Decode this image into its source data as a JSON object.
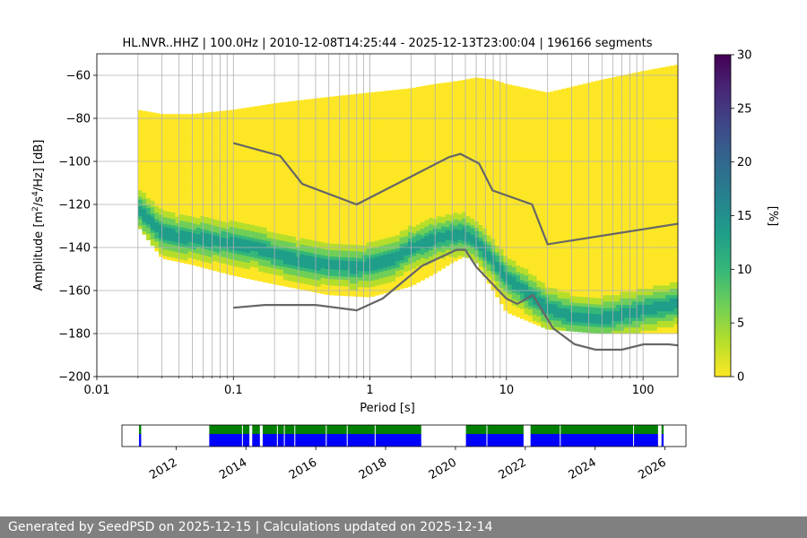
{
  "footer": {
    "text": "Generated by SeedPSD on 2025-12-15 | Calculations updated on 2025-12-14"
  },
  "colors": {
    "ppsd_yellow": "#fde725",
    "noise_model_line": "#666666",
    "grid": "#b0b0b0",
    "availability_data": "#0000ff",
    "availability_gaps_top": "#008000",
    "colormap": [
      "#fde725",
      "#b5de2b",
      "#6ece58",
      "#35b779",
      "#1f9e89",
      "#26828e",
      "#31688e",
      "#3e4989",
      "#482878",
      "#440154"
    ]
  },
  "chart_data": [
    {
      "type": "heatmap",
      "title": "HL.NVR..HHZ | 100.0Hz | 2010-12-08T14:25:44 - 2025-12-13T23:00:04 | 196166 segments",
      "xlabel": "Period [s]",
      "ylabel_parts": {
        "pre": "Amplitude [m",
        "sup1": "2",
        "mid": "/s",
        "sup2": "4",
        "post": "/Hz] [dB]"
      },
      "x_scale": "log",
      "xlim": [
        0.01,
        180
      ],
      "ylim": [
        -200,
        -50
      ],
      "grid": true,
      "x_ticks": [
        {
          "v": 0.01,
          "label": "0.01"
        },
        {
          "v": 0.1,
          "label": "0.1"
        },
        {
          "v": 1,
          "label": "1"
        },
        {
          "v": 10,
          "label": "10"
        },
        {
          "v": 100,
          "label": "100"
        }
      ],
      "y_ticks": [
        {
          "v": -60,
          "label": "−60"
        },
        {
          "v": -80,
          "label": "−80"
        },
        {
          "v": -100,
          "label": "−100"
        },
        {
          "v": -120,
          "label": "−120"
        },
        {
          "v": -140,
          "label": "−140"
        },
        {
          "v": -160,
          "label": "−160"
        },
        {
          "v": -180,
          "label": "−180"
        },
        {
          "v": -200,
          "label": "−200"
        }
      ],
      "period_grid_lines": [
        0.02,
        0.03,
        0.04,
        0.05,
        0.06,
        0.07,
        0.08,
        0.09,
        0.2,
        0.3,
        0.4,
        0.5,
        0.6,
        0.7,
        0.8,
        0.9,
        2,
        3,
        4,
        5,
        6,
        7,
        8,
        9,
        20,
        30,
        40,
        50,
        60,
        70,
        80,
        90
      ],
      "ppsd_envelope": {
        "period": [
          0.02,
          0.03,
          0.05,
          0.1,
          0.2,
          0.5,
          1,
          2,
          3,
          4,
          5,
          6,
          8,
          10,
          20,
          50,
          100,
          180
        ],
        "upper_db": [
          -76,
          -78,
          -78,
          -76,
          -73,
          -70,
          -68,
          -66,
          -64,
          -63,
          -62,
          -61,
          -62,
          -64,
          -68,
          -62,
          -58,
          -55
        ],
        "lower_db": [
          -130,
          -145,
          -148,
          -153,
          -157,
          -162,
          -163,
          -158,
          -152,
          -147,
          -144,
          -147,
          -160,
          -170,
          -178,
          -180,
          -180,
          -180
        ]
      },
      "mode_db": {
        "period": [
          0.02,
          0.025,
          0.03,
          0.04,
          0.06,
          0.1,
          0.15,
          0.2,
          0.3,
          0.5,
          0.8,
          1,
          1.5,
          2,
          3,
          4,
          5,
          6,
          8,
          10,
          15,
          20,
          30,
          50,
          100,
          180
        ],
        "value": [
          -122,
          -128,
          -133,
          -135,
          -136,
          -138,
          -140,
          -143,
          -146,
          -148,
          -149,
          -148,
          -145,
          -140,
          -136,
          -134,
          -134,
          -137,
          -146,
          -154,
          -162,
          -168,
          -172,
          -173,
          -169,
          -166
        ]
      },
      "noise_model_high": {
        "period": [
          0.1,
          0.22,
          0.32,
          0.8,
          3.8,
          4.6,
          6.3,
          7.9,
          15.4,
          20,
          180
        ],
        "value": [
          -91.5,
          -97.4,
          -110.5,
          -120,
          -98,
          -96.5,
          -101,
          -113.5,
          -120,
          -138.5,
          -129
        ]
      },
      "noise_model_low": {
        "period": [
          0.1,
          0.17,
          0.4,
          0.8,
          1.24,
          2.4,
          4.3,
          5,
          6,
          10,
          12,
          15.6,
          21.9,
          31.6,
          45,
          70,
          101,
          154,
          180
        ],
        "value": [
          -168,
          -166.7,
          -166.7,
          -169.2,
          -163.7,
          -148.6,
          -141.1,
          -141.1,
          -149,
          -163.8,
          -166.2,
          -162.1,
          -177.5,
          -185,
          -187.5,
          -187.5,
          -185,
          -185,
          -185.5
        ]
      },
      "colorbar": {
        "label": "[%]",
        "range": [
          0,
          30
        ],
        "ticks": [
          {
            "v": 0,
            "label": "0"
          },
          {
            "v": 5,
            "label": "5"
          },
          {
            "v": 10,
            "label": "10"
          },
          {
            "v": 15,
            "label": "15"
          },
          {
            "v": 20,
            "label": "20"
          },
          {
            "v": 25,
            "label": "25"
          },
          {
            "v": 30,
            "label": "30"
          }
        ]
      }
    },
    {
      "type": "timeline",
      "xlim": [
        2010.45,
        2026.6
      ],
      "x_ticks": [
        {
          "v": 2012,
          "label": "2012"
        },
        {
          "v": 2014,
          "label": "2014"
        },
        {
          "v": 2016,
          "label": "2016"
        },
        {
          "v": 2018,
          "label": "2018"
        },
        {
          "v": 2020,
          "label": "2020"
        },
        {
          "v": 2022,
          "label": "2022"
        },
        {
          "v": 2024,
          "label": "2024"
        },
        {
          "v": 2026,
          "label": "2026"
        }
      ],
      "data_periods": [
        [
          2010.94,
          2011.0
        ],
        [
          2012.95,
          2014.1
        ],
        [
          2014.18,
          2014.4
        ],
        [
          2014.48,
          2019.02
        ],
        [
          2020.3,
          2021.95
        ],
        [
          2022.15,
          2025.8
        ],
        [
          2025.9,
          2025.96
        ]
      ],
      "gap_markers": [
        2013.9,
        2014.9,
        2015.1,
        2015.4,
        2016.3,
        2016.9,
        2017.7,
        2020.9,
        2023.0,
        2025.1
      ]
    }
  ]
}
